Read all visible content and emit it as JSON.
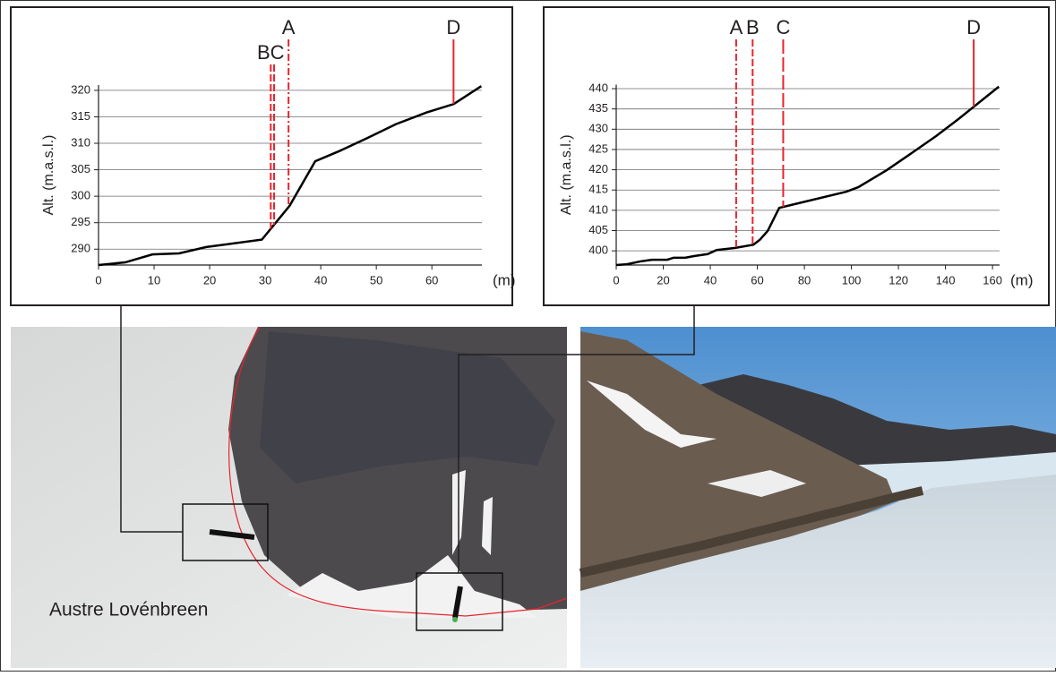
{
  "chart_data": [
    {
      "type": "line",
      "ylabel": "Alt. (m.a.s.l.)",
      "xlabel": "(m)",
      "x": [
        0,
        4.8,
        9.7,
        14.5,
        19.4,
        29.4,
        34.4,
        39,
        43.5,
        48.4,
        53.5,
        59,
        63.9,
        68.9
      ],
      "values": [
        287,
        287.5,
        289,
        289.2,
        290.4,
        291.8,
        298.2,
        306.6,
        308.6,
        311,
        313.6,
        315.8,
        317.4,
        320.8
      ],
      "color": "#000000",
      "xlim": [
        0,
        69
      ],
      "ylim": [
        287,
        321
      ],
      "xticks": [
        0,
        10,
        20,
        30,
        40,
        50,
        60
      ],
      "yticks": [
        290,
        295,
        300,
        305,
        310,
        315,
        320
      ],
      "grid": true,
      "markers": [
        {
          "label": "A",
          "x": 34.2,
          "dash": "dashdot",
          "color": "#e8242c"
        },
        {
          "label": "BC",
          "x": 31,
          "dash": "dashed",
          "color": "#e8242c"
        },
        {
          "x": 31.6,
          "dash": "dashed",
          "color": "#e8242c"
        },
        {
          "label": "D",
          "x": 63.9,
          "dash": "solid",
          "color": "#e8242c"
        }
      ]
    },
    {
      "type": "line",
      "ylabel": "Alt. (m.a.s.l.)",
      "xlabel": "(m)",
      "x": [
        0,
        4.6,
        10.3,
        15.2,
        21.7,
        24.4,
        29.3,
        33.1,
        38.9,
        42.7,
        50.3,
        58.3,
        61,
        64.4,
        69.3,
        97.9,
        102.9,
        115,
        124.6,
        136,
        145.5,
        162.7
      ],
      "values": [
        396.5,
        396.7,
        397.4,
        397.8,
        397.8,
        398.3,
        398.3,
        398.7,
        399.2,
        400.2,
        400.7,
        401.5,
        402.7,
        404.9,
        410.6,
        414.6,
        415.7,
        419.9,
        423.7,
        428.3,
        432.5,
        440.5
      ],
      "color": "#000000",
      "xlim": [
        0,
        163
      ],
      "ylim": [
        396.5,
        441
      ],
      "xticks": [
        0,
        20,
        40,
        60,
        80,
        100,
        120,
        140,
        160
      ],
      "yticks": [
        400,
        405,
        410,
        415,
        420,
        425,
        430,
        435,
        440
      ],
      "grid": true,
      "markers": [
        {
          "label": "A",
          "x": 51,
          "dash": "dashdot",
          "color": "#e8242c"
        },
        {
          "label": "B",
          "x": 58,
          "dash": "dashed",
          "color": "#e8242c"
        },
        {
          "label": "C",
          "x": 71,
          "dash": "longdash",
          "color": "#e8242c"
        },
        {
          "label": "D",
          "x": 152,
          "dash": "solid",
          "color": "#e8242c"
        }
      ]
    }
  ],
  "photo_caption": "Austre Lovénbreen"
}
